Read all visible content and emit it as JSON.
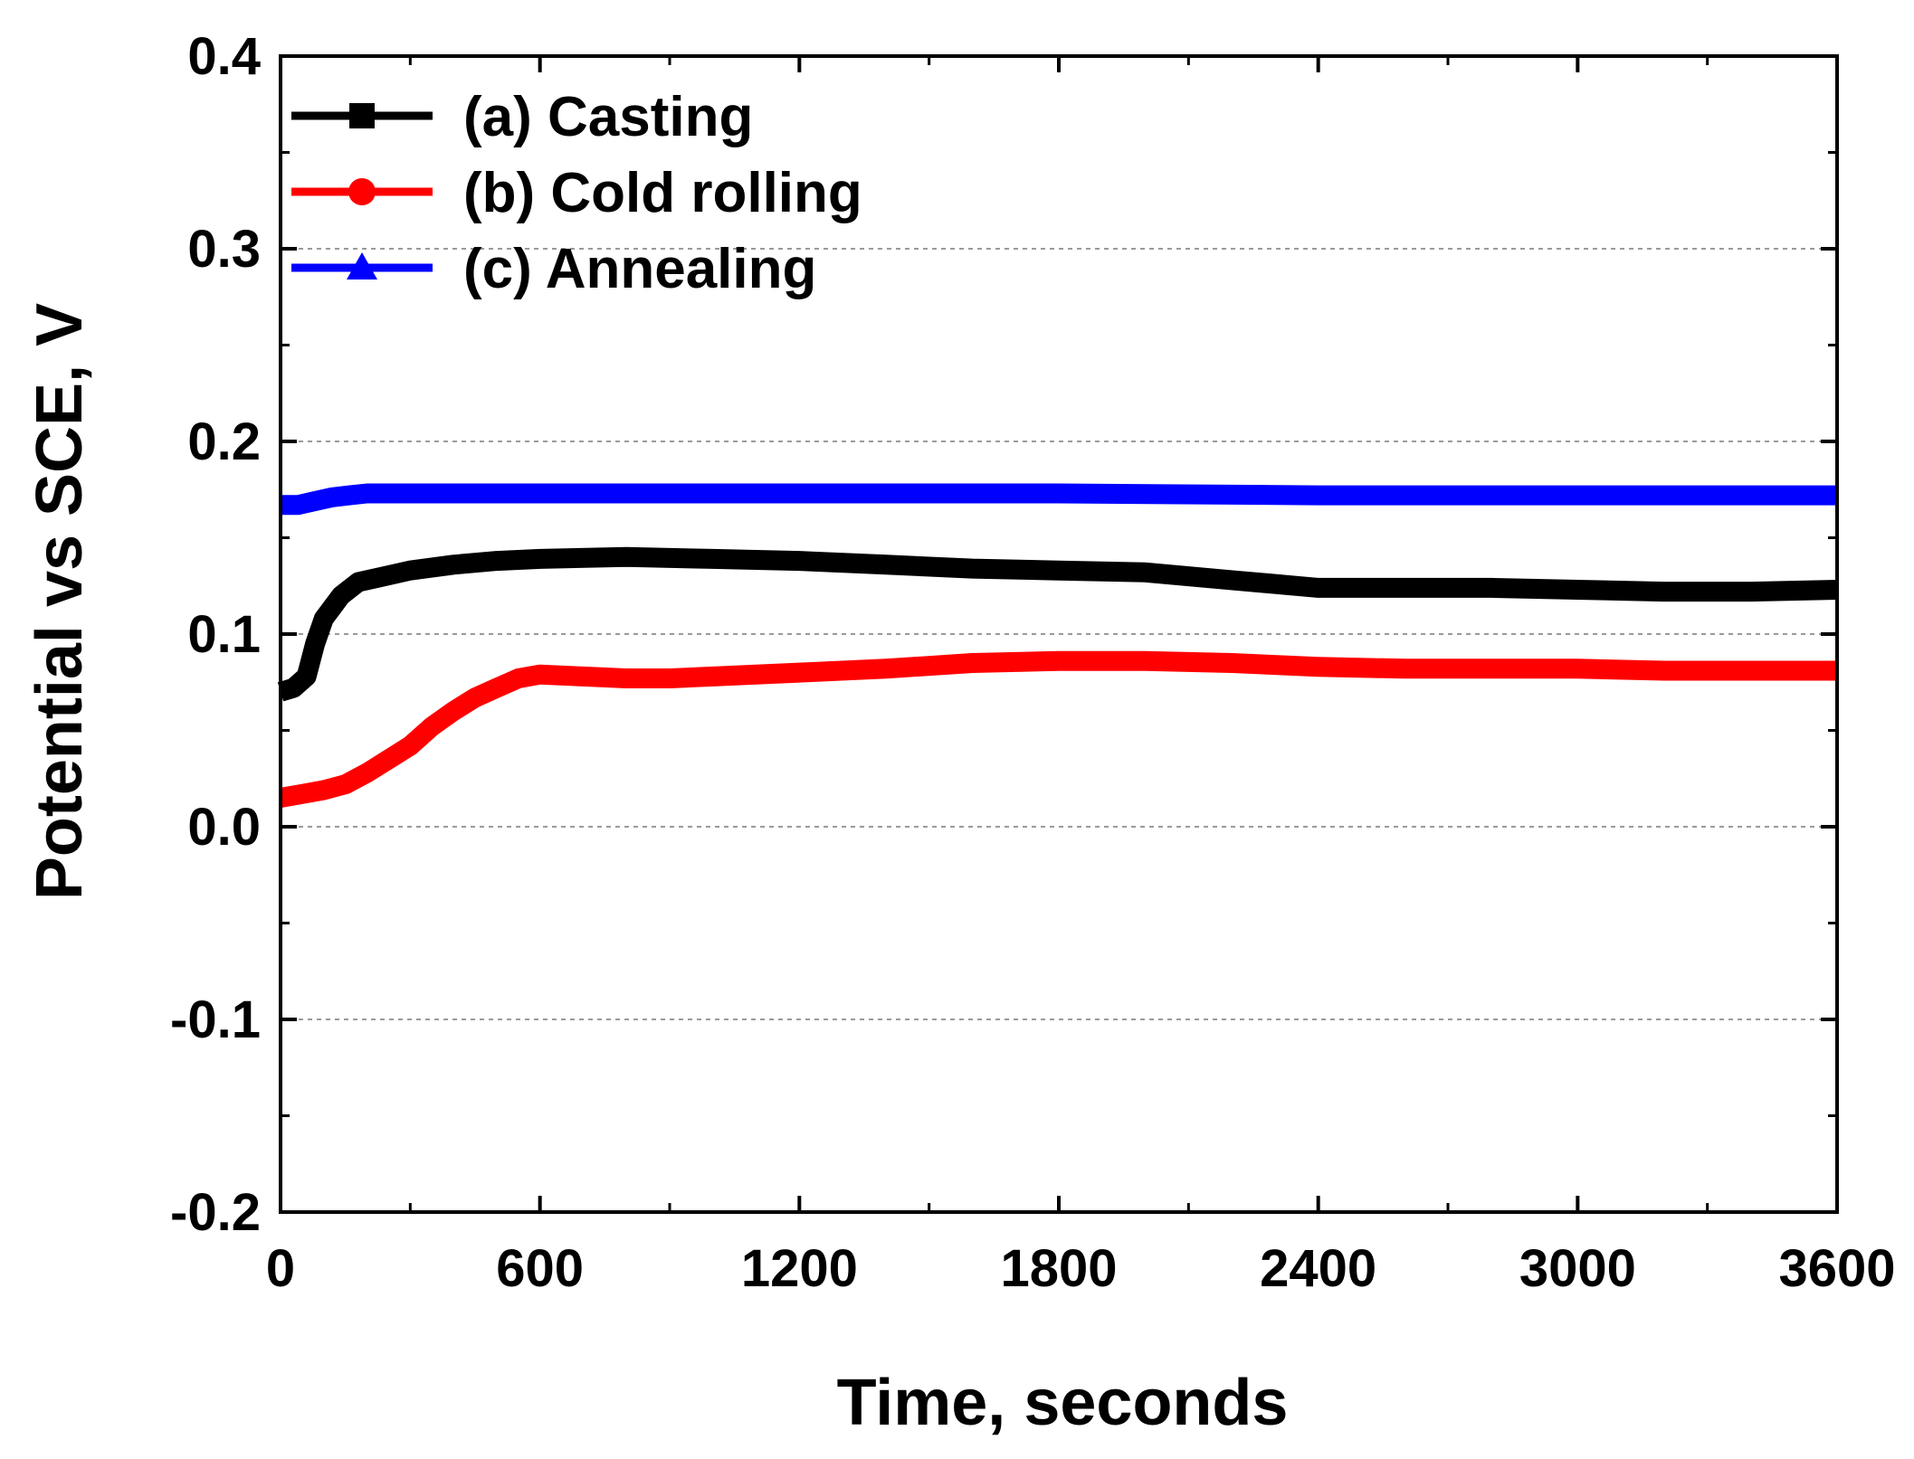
{
  "chart_data": {
    "type": "line",
    "title": "",
    "xlabel": "Time, seconds",
    "ylabel": "Potential vs SCE, V",
    "xlim": [
      0,
      3600
    ],
    "ylim": [
      -0.2,
      0.4
    ],
    "xticks": [
      "0",
      "600",
      "1200",
      "1800",
      "2400",
      "3000",
      "3600"
    ],
    "xtick_values": [
      0,
      600,
      1200,
      1800,
      2400,
      3000,
      3600
    ],
    "yticks": [
      "-0.2",
      "-0.1",
      "0.0",
      "0.1",
      "0.2",
      "0.3",
      "0.4"
    ],
    "ytick_values": [
      -0.2,
      -0.1,
      0.0,
      0.1,
      0.2,
      0.3,
      0.4
    ],
    "grid": "horizontal dotted",
    "legend_position": "top-left",
    "series": [
      {
        "name": "(a) Casting",
        "color": "#000000",
        "marker": "square",
        "x": [
          0,
          30,
          60,
          80,
          100,
          140,
          180,
          240,
          300,
          400,
          500,
          600,
          800,
          1000,
          1200,
          1400,
          1600,
          1800,
          2000,
          2200,
          2400,
          2600,
          2800,
          3000,
          3200,
          3400,
          3600
        ],
        "y": [
          0.07,
          0.072,
          0.078,
          0.095,
          0.108,
          0.12,
          0.127,
          0.13,
          0.133,
          0.136,
          0.138,
          0.139,
          0.14,
          0.139,
          0.138,
          0.136,
          0.134,
          0.133,
          0.132,
          0.128,
          0.124,
          0.124,
          0.124,
          0.123,
          0.122,
          0.122,
          0.123
        ]
      },
      {
        "name": "(b) Cold rolling",
        "color": "#ff0000",
        "marker": "circle",
        "x": [
          0,
          50,
          100,
          150,
          200,
          250,
          300,
          350,
          400,
          450,
          500,
          550,
          600,
          700,
          800,
          900,
          1000,
          1200,
          1400,
          1600,
          1800,
          2000,
          2200,
          2400,
          2600,
          2800,
          3000,
          3200,
          3400,
          3600
        ],
        "y": [
          0.015,
          0.017,
          0.019,
          0.022,
          0.028,
          0.035,
          0.042,
          0.052,
          0.06,
          0.067,
          0.072,
          0.077,
          0.079,
          0.078,
          0.077,
          0.077,
          0.078,
          0.08,
          0.082,
          0.085,
          0.086,
          0.086,
          0.085,
          0.083,
          0.082,
          0.082,
          0.082,
          0.081,
          0.081,
          0.081
        ]
      },
      {
        "name": "(c) Annealing",
        "color": "#0000ff",
        "marker": "triangle",
        "x": [
          0,
          40,
          80,
          120,
          160,
          200,
          300,
          600,
          1200,
          1800,
          2400,
          3000,
          3600
        ],
        "y": [
          0.167,
          0.167,
          0.169,
          0.171,
          0.172,
          0.173,
          0.173,
          0.173,
          0.173,
          0.173,
          0.172,
          0.172,
          0.172
        ]
      }
    ]
  }
}
